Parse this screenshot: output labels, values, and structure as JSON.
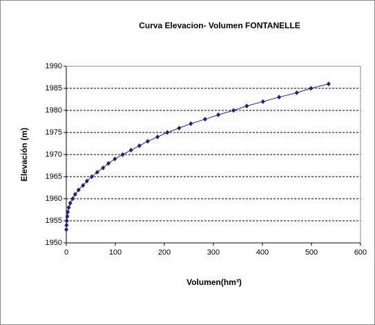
{
  "chart_data": {
    "type": "line",
    "title": "Curva Elevacion- Volumen FONTANELLE",
    "xlabel": "Volumen(hm³)",
    "ylabel": "Elevación (m)",
    "series": [
      {
        "name": "Elevación",
        "color": "#1f1f8c",
        "x": [
          0,
          0.5,
          1,
          2,
          3,
          5,
          8,
          13,
          18,
          25,
          34,
          42,
          52,
          63,
          75,
          86,
          99,
          115,
          132,
          149,
          166,
          186,
          206,
          230,
          254,
          283,
          310,
          341,
          368,
          401,
          434,
          470,
          499,
          535
        ],
        "values": [
          1953,
          1954,
          1955,
          1956,
          1957,
          1958,
          1959,
          1960,
          1961,
          1962,
          1963,
          1964,
          1965,
          1966,
          1967,
          1968,
          1969,
          1970,
          1971,
          1972,
          1973,
          1974,
          1975,
          1976,
          1977,
          1978,
          1979,
          1980,
          1981,
          1982,
          1983,
          1984,
          1985,
          1986
        ]
      }
    ],
    "xlim": [
      0,
      600
    ],
    "xticks": [
      0,
      100,
      200,
      300,
      400,
      500,
      600
    ],
    "ylim": [
      1950,
      1990
    ],
    "yticks": [
      1950,
      1955,
      1960,
      1965,
      1970,
      1975,
      1980,
      1985,
      1990
    ],
    "grid": true
  }
}
